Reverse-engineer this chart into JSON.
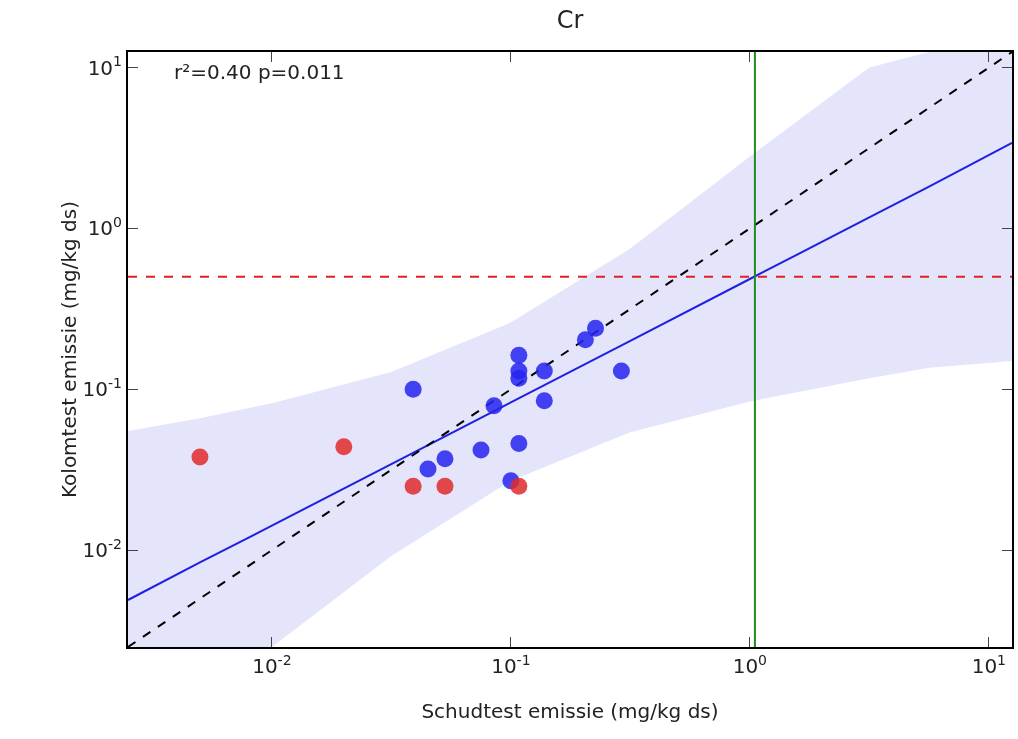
{
  "chart_data": {
    "type": "scatter",
    "title": "Cr",
    "xlabel": "Schudtest emissie (mg/kg ds)",
    "ylabel": "Kolomtest emissie (mg/kg ds)",
    "annotations": [
      "r²=0.40 p=0.011"
    ],
    "log": "xy",
    "grid": false,
    "marker": "circle",
    "xlim": [
      0.0025,
      12.5
    ],
    "ylim": [
      0.0025,
      12.5
    ],
    "xticks": [
      {
        "value": 0.01,
        "label": "10$^{-2}$"
      },
      {
        "value": 0.1,
        "label": "10$^{-1}$"
      },
      {
        "value": 1,
        "label": "10$^{0}$"
      },
      {
        "value": 10,
        "label": "10$^{1}$"
      }
    ],
    "yticks": [
      {
        "value": 0.01,
        "label": "10$^{-2}$"
      },
      {
        "value": 0.1,
        "label": "10$^{-1}$"
      },
      {
        "value": 1,
        "label": "10$^{0}$"
      },
      {
        "value": 10,
        "label": "10$^{1}$"
      }
    ],
    "series": [
      {
        "type": "line",
        "color": "#2020e0",
        "line_style": "solid",
        "marker": "none",
        "x": [
          0.0025,
          0.005,
          0.01,
          0.0316,
          0.1,
          0.316,
          1,
          3.16,
          5.62,
          12.5
        ],
        "values": [
          0.0049,
          0.0084,
          0.0142,
          0.0343,
          0.083,
          0.2,
          0.485,
          1.17,
          1.82,
          3.4
        ],
        "lower": [
          0.0025,
          0.0025,
          0.0025,
          0.0092,
          0.027,
          0.054,
          0.084,
          0.117,
          0.136,
          0.15
        ],
        "upper": [
          0.055,
          0.066,
          0.082,
          0.128,
          0.26,
          0.75,
          2.8,
          10,
          12.5,
          12.5
        ]
      },
      {
        "type": "line",
        "color": "#000000",
        "line_style": "dashed",
        "marker": "none",
        "x": [
          0.0025,
          12.5
        ],
        "values": [
          0.0025,
          12.5
        ]
      },
      {
        "color": "#2424f0",
        "x": [
          0.039,
          0.045,
          0.053,
          0.075,
          0.085,
          0.1,
          0.108,
          0.138,
          0.138,
          0.29,
          0.108,
          0.108,
          0.108,
          0.205,
          0.226
        ],
        "values": [
          0.1,
          0.032,
          0.037,
          0.042,
          0.079,
          0.027,
          0.046,
          0.085,
          0.13,
          0.13,
          0.163,
          0.13,
          0.117,
          0.203,
          0.24
        ]
      },
      {
        "color": "#e02a2a",
        "x": [
          0.005,
          0.02,
          0.039,
          0.053,
          0.108
        ],
        "values": [
          0.038,
          0.044,
          0.025,
          0.025,
          0.025
        ]
      }
    ],
    "ref_lines": [
      {
        "axis": "y",
        "value": 0.5,
        "color": "#e02020",
        "line_style": "dashed"
      },
      {
        "axis": "x",
        "value": 1.05,
        "color": "#228b22",
        "line_style": "solid"
      }
    ]
  }
}
